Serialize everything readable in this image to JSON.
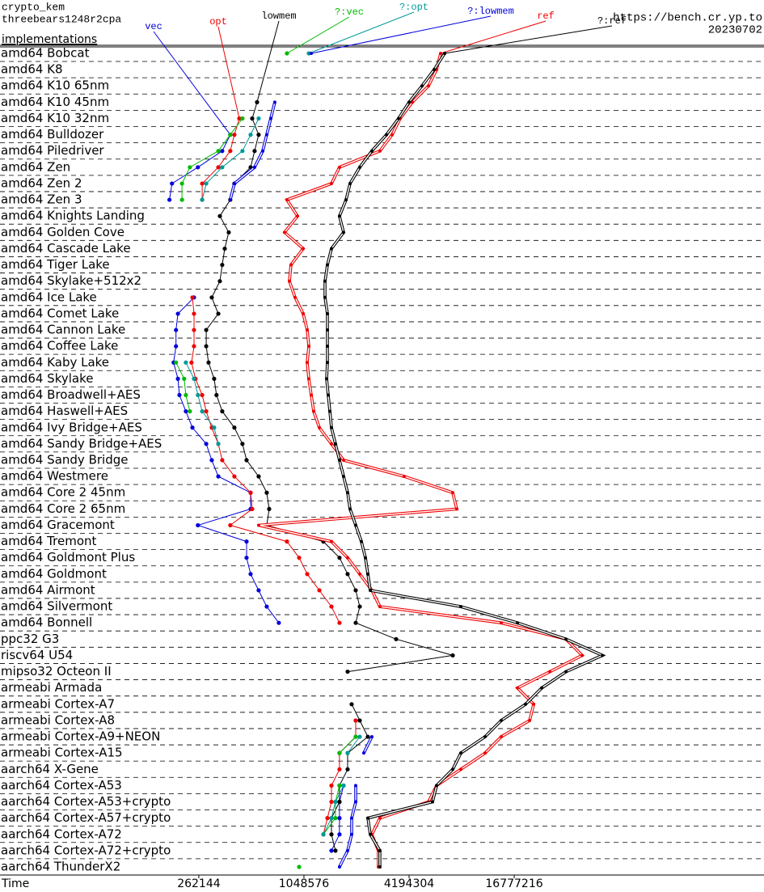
{
  "chart_data": {
    "type": "line",
    "orientation": "horizontal",
    "title": "crypto_kem",
    "subtitle": "threebears1248r2cpa",
    "heading": "implementations",
    "source": "https://bench.cr.yp.to",
    "date": "20230702",
    "xlabel": "Time",
    "xscale": "log",
    "xlim": [
      19055,
      452000000
    ],
    "xticks": [
      262144,
      1048576,
      4194304,
      16777216
    ],
    "categories": [
      "amd64 Bobcat",
      "amd64 K8",
      "amd64 K10 65nm",
      "amd64 K10 45nm",
      "amd64 K10 32nm",
      "amd64 Bulldozer",
      "amd64 Piledriver",
      "amd64 Zen",
      "amd64 Zen 2",
      "amd64 Zen 3",
      "amd64 Knights Landing",
      "amd64 Golden Cove",
      "amd64 Cascade Lake",
      "amd64 Tiger Lake",
      "amd64 Skylake+512x2",
      "amd64 Ice Lake",
      "amd64 Comet Lake",
      "amd64 Cannon Lake",
      "amd64 Coffee Lake",
      "amd64 Kaby Lake",
      "amd64 Skylake",
      "amd64 Broadwell+AES",
      "amd64 Haswell+AES",
      "amd64 Ivy Bridge+AES",
      "amd64 Sandy Bridge+AES",
      "amd64 Sandy Bridge",
      "amd64 Westmere",
      "amd64 Core 2 45nm",
      "amd64 Core 2 65nm",
      "amd64 Gracemont",
      "amd64 Tremont",
      "amd64 Goldmont Plus",
      "amd64 Goldmont",
      "amd64 Airmont",
      "amd64 Silvermont",
      "amd64 Bonnell",
      "ppc32 G3",
      "riscv64 U54",
      "mipso32 Octeon II",
      "armeabi Armada",
      "armeabi Cortex-A7",
      "armeabi Cortex-A8",
      "armeabi Cortex-A9+NEON",
      "armeabi Cortex-A15",
      "aarch64 X-Gene",
      "aarch64 Cortex-A53",
      "aarch64 Cortex-A53+crypto",
      "aarch64 Cortex-A57+crypto",
      "aarch64 Cortex-A72",
      "aarch64 Cortex-A72+crypto",
      "aarch64 ThunderX2"
    ],
    "series": [
      {
        "name": "vec",
        "color": "#0000dd",
        "double": false,
        "values": [
          null,
          null,
          null,
          null,
          null,
          397000,
          357000,
          259000,
          184000,
          178000,
          null,
          null,
          null,
          null,
          null,
          246000,
          199000,
          194000,
          194000,
          188000,
          199000,
          203000,
          221000,
          241000,
          289000,
          311000,
          339000,
          519000,
          519000,
          259000,
          492000,
          492000,
          519000,
          577000,
          642000,
          753000,
          null,
          null,
          null,
          null,
          null,
          2075000,
          2075000,
          1676000,
          null,
          1768000,
          1676000,
          1676000,
          1676000,
          1507000,
          null
        ]
      },
      {
        "name": "opt",
        "color": "#ee0000",
        "double": false,
        "values": [
          null,
          null,
          null,
          null,
          447000,
          419000,
          397000,
          339000,
          274000,
          274000,
          null,
          null,
          null,
          null,
          null,
          241000,
          246000,
          246000,
          246000,
          238000,
          251000,
          274000,
          289000,
          311000,
          339000,
          357000,
          419000,
          519000,
          530000,
          397000,
          838000,
          984000,
          1095000,
          1285000,
          1507000,
          1676000,
          null,
          null,
          null,
          null,
          null,
          2075000,
          2075000,
          1676000,
          1676000,
          1507000,
          1507000,
          1429000,
          1355000,
          null,
          null
        ]
      },
      {
        "name": "lowmem",
        "color": "#000000",
        "double": false,
        "values": [
          null,
          null,
          null,
          565000,
          530000,
          577000,
          547000,
          519000,
          419000,
          397000,
          346000,
          389000,
          369000,
          357000,
          346000,
          311000,
          339000,
          289000,
          289000,
          298000,
          321000,
          331000,
          357000,
          419000,
          466000,
          492000,
          577000,
          642000,
          663000,
          642000,
          1355000,
          1676000,
          1865000,
          2075000,
          2189000,
          2075000,
          3536000,
          7462000,
          1865000,
          null,
          1967000,
          2189000,
          2435000,
          1865000,
          1865000,
          1676000,
          1676000,
          1507000,
          1507000,
          1589000,
          null
        ]
      },
      {
        "name": "?:vec",
        "color": "#00bb00",
        "double": false,
        "values": [
          838000,
          null,
          null,
          null,
          466000,
          397000,
          339000,
          233000,
          210000,
          210000,
          null,
          null,
          null,
          null,
          null,
          null,
          null,
          null,
          null,
          194000,
          216000,
          221000,
          233000,
          null,
          null,
          null,
          null,
          null,
          null,
          null,
          null,
          null,
          null,
          null,
          null,
          null,
          null,
          null,
          null,
          null,
          null,
          null,
          2075000,
          1676000,
          null,
          1676000,
          1589000,
          1589000,
          1355000,
          null,
          984000
        ]
      },
      {
        "name": "?:opt",
        "color": "#009999",
        "double": false,
        "values": [
          1118000,
          null,
          null,
          null,
          577000,
          519000,
          466000,
          357000,
          289000,
          274000,
          null,
          null,
          null,
          null,
          null,
          null,
          null,
          null,
          null,
          221000,
          246000,
          259000,
          274000,
          321000,
          339000,
          null,
          null,
          null,
          null,
          null,
          null,
          null,
          null,
          null,
          null,
          null,
          null,
          null,
          null,
          null,
          null,
          null,
          2189000,
          1865000,
          null,
          1768000,
          1589000,
          1507000,
          1355000,
          null,
          null
        ]
      },
      {
        "name": "?:lowmem",
        "color": "#0000dd",
        "double": true,
        "values": [
          1155000,
          null,
          null,
          714000,
          677000,
          642000,
          609000,
          547000,
          419000,
          397000,
          null,
          null,
          null,
          null,
          null,
          null,
          null,
          null,
          null,
          null,
          null,
          null,
          null,
          null,
          null,
          null,
          null,
          null,
          null,
          null,
          null,
          null,
          null,
          null,
          null,
          null,
          null,
          null,
          null,
          null,
          null,
          null,
          2569000,
          2309000,
          null,
          2075000,
          2075000,
          1967000,
          1967000,
          1865000,
          1676000
        ]
      },
      {
        "name": "ref",
        "color": "#ee0000",
        "double": true,
        "values": [
          6359000,
          6027000,
          5419000,
          4379000,
          3731000,
          3353000,
          2856000,
          1676000,
          1507000,
          838000,
          963000,
          812000,
          1038000,
          884000,
          866000,
          933000,
          1038000,
          1095000,
          1118000,
          1095000,
          1118000,
          1155000,
          1192000,
          1285000,
          1507000,
          1768000,
          3934000,
          7462000,
          7869000,
          577000,
          1507000,
          1865000,
          2189000,
          2569000,
          2856000,
          14140000,
          33200000,
          41100000,
          26830000,
          17520000,
          21680000,
          20550000,
          14140000,
          11430000,
          8301000,
          6027000,
          5419000,
          2856000,
          2569000,
          2796000,
          2796000
        ]
      },
      {
        "name": "?:ref",
        "color": "#000000",
        "double": true,
        "values": [
          6707000,
          5838000,
          4974000,
          4194000,
          3651000,
          3112000,
          2569000,
          2189000,
          1926000,
          1826000,
          1676000,
          1768000,
          1507000,
          1429000,
          1384000,
          1384000,
          1429000,
          1429000,
          1429000,
          1429000,
          1414000,
          1444000,
          1475000,
          1507000,
          1589000,
          1676000,
          1768000,
          1865000,
          1926000,
          2075000,
          2236000,
          2358000,
          2435000,
          2515000,
          8301000,
          17520000,
          33200000,
          53650000,
          33200000,
          24110000,
          19480000,
          14140000,
          11430000,
          8301000,
          7462000,
          6027000,
          5713000,
          2435000,
          2515000,
          2856000,
          2856000
        ]
      }
    ]
  }
}
